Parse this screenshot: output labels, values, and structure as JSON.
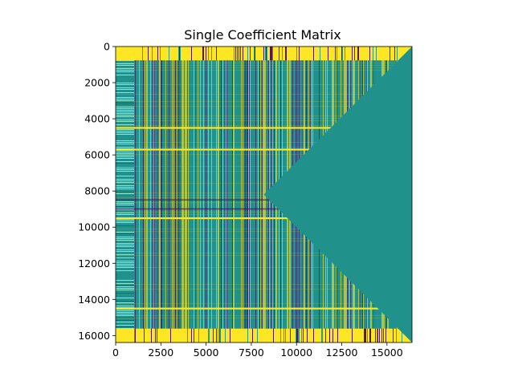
{
  "chart_data": {
    "type": "heatmap",
    "title": "Single Coefficient Matrix",
    "xlabel": "",
    "ylabel": "",
    "xlim": [
      0,
      16384
    ],
    "ylim": [
      16384,
      0
    ],
    "x_ticks": [
      0,
      2500,
      5000,
      7500,
      10000,
      12500,
      15000
    ],
    "x_tick_labels": [
      "0",
      "2500",
      "5000",
      "7500",
      "10000",
      "12500",
      "15000"
    ],
    "y_ticks": [
      0,
      2000,
      4000,
      6000,
      8000,
      10000,
      12000,
      14000,
      16000
    ],
    "y_tick_labels": [
      "0",
      "2000",
      "4000",
      "6000",
      "8000",
      "10000",
      "12000",
      "14000",
      "16000"
    ],
    "colormap": "viridis",
    "colors": {
      "high": "#fde725",
      "mid": "#21918c",
      "low": "#440154",
      "mid_low": "#3b528b"
    },
    "regions": {
      "full_columns": [
        0,
        1024
      ],
      "full_rows_top": [
        0,
        768
      ],
      "full_rows_bottom": [
        15616,
        16384
      ],
      "bright_row_bands": [
        4500,
        5700,
        9500,
        14500
      ],
      "dark_row_bands": [
        8500,
        9000
      ],
      "diagonal_apex": [
        8192,
        8192
      ]
    }
  }
}
